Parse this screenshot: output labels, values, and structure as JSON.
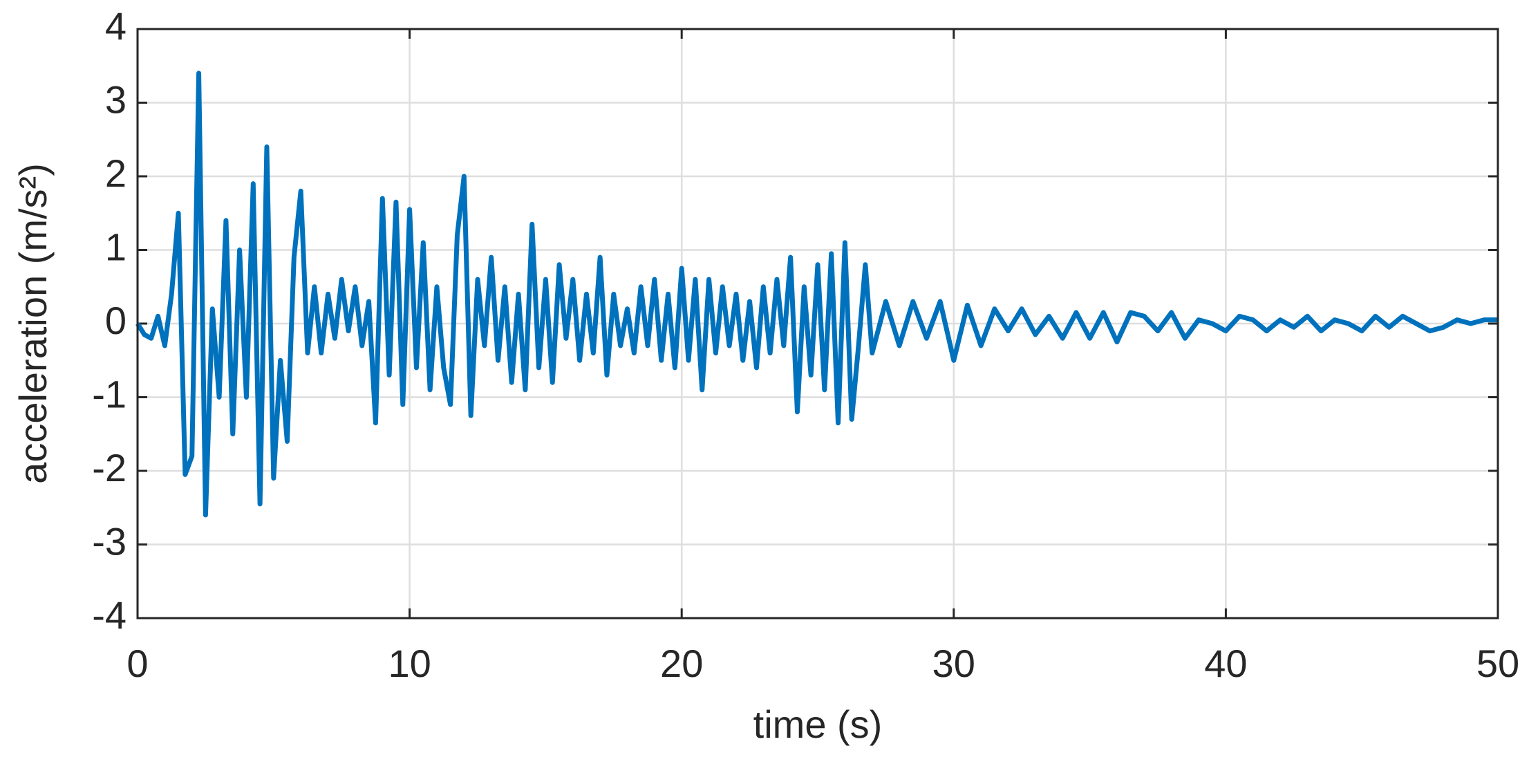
{
  "chart_data": {
    "type": "line",
    "xlabel": "time (s)",
    "ylabel": "acceleration (m/s²)",
    "color": "#0072bd",
    "grid": true,
    "xlim": [
      0,
      50
    ],
    "xticks": [
      0,
      10,
      20,
      30,
      40,
      50
    ],
    "ylim": [
      -4,
      4
    ],
    "yticks": [
      -4,
      -3,
      -2,
      -1,
      0,
      1,
      2,
      3,
      4
    ],
    "x": [
      0,
      0.25,
      0.5,
      0.75,
      1,
      1.25,
      1.5,
      1.75,
      2,
      2.25,
      2.5,
      2.75,
      3,
      3.25,
      3.5,
      3.75,
      4,
      4.25,
      4.5,
      4.75,
      5,
      5.25,
      5.5,
      5.75,
      6,
      6.25,
      6.5,
      6.75,
      7,
      7.25,
      7.5,
      7.75,
      8,
      8.25,
      8.5,
      8.75,
      9,
      9.25,
      9.5,
      9.75,
      10,
      10.25,
      10.5,
      10.75,
      11,
      11.25,
      11.5,
      11.75,
      12,
      12.25,
      12.5,
      12.75,
      13,
      13.25,
      13.5,
      13.75,
      14,
      14.25,
      14.5,
      14.75,
      15,
      15.25,
      15.5,
      15.75,
      16,
      16.25,
      16.5,
      16.75,
      17,
      17.25,
      17.5,
      17.75,
      18,
      18.25,
      18.5,
      18.75,
      19,
      19.25,
      19.5,
      19.75,
      20,
      20.25,
      20.5,
      20.75,
      21,
      21.25,
      21.5,
      21.75,
      22,
      22.25,
      22.5,
      22.75,
      23,
      23.25,
      23.5,
      23.75,
      24,
      24.25,
      24.5,
      24.75,
      25,
      25.25,
      25.5,
      25.75,
      26,
      26.25,
      26.5,
      26.75,
      27,
      27.5,
      28,
      28.5,
      29,
      29.5,
      30,
      30.5,
      31,
      31.5,
      32,
      32.5,
      33,
      33.5,
      34,
      34.5,
      35,
      35.5,
      36,
      36.5,
      37,
      37.5,
      38,
      38.5,
      39,
      39.5,
      40,
      40.5,
      41,
      41.5,
      42,
      42.5,
      43,
      43.5,
      44,
      44.5,
      45,
      45.5,
      46,
      46.5,
      47,
      47.5,
      48,
      48.5,
      49,
      49.5,
      50
    ],
    "values": [
      0,
      -0.15,
      -0.2,
      0.1,
      -0.3,
      0.4,
      1.5,
      -2.05,
      -1.8,
      3.4,
      -2.6,
      0.2,
      -1.0,
      1.4,
      -1.5,
      1.0,
      -1.0,
      1.9,
      -2.45,
      2.4,
      -2.1,
      -0.5,
      -1.6,
      0.9,
      1.8,
      -0.4,
      0.5,
      -0.4,
      0.4,
      -0.2,
      0.6,
      -0.1,
      0.5,
      -0.3,
      0.3,
      -1.35,
      1.7,
      -0.7,
      1.65,
      -1.1,
      1.55,
      -0.6,
      1.1,
      -0.9,
      0.5,
      -0.6,
      -1.1,
      1.2,
      2.0,
      -1.25,
      0.6,
      -0.3,
      0.9,
      -0.5,
      0.5,
      -0.8,
      0.4,
      -0.9,
      1.35,
      -0.6,
      0.6,
      -0.8,
      0.8,
      -0.2,
      0.6,
      -0.5,
      0.4,
      -0.4,
      0.9,
      -0.7,
      0.4,
      -0.3,
      0.2,
      -0.4,
      0.5,
      -0.3,
      0.6,
      -0.5,
      0.4,
      -0.6,
      0.75,
      -0.5,
      0.6,
      -0.9,
      0.6,
      -0.4,
      0.5,
      -0.3,
      0.4,
      -0.5,
      0.3,
      -0.6,
      0.5,
      -0.4,
      0.6,
      -0.3,
      0.9,
      -1.2,
      0.5,
      -0.7,
      0.8,
      -0.9,
      0.95,
      -1.35,
      1.1,
      -1.3,
      -0.3,
      0.8,
      -0.4,
      0.3,
      -0.3,
      0.3,
      -0.2,
      0.3,
      -0.5,
      0.25,
      -0.3,
      0.2,
      -0.1,
      0.2,
      -0.15,
      0.1,
      -0.2,
      0.15,
      -0.2,
      0.15,
      -0.25,
      0.15,
      0.1,
      -0.1,
      0.15,
      -0.2,
      0.05,
      0.0,
      -0.1,
      0.1,
      0.05,
      -0.1,
      0.05,
      -0.05,
      0.1,
      -0.1,
      0.05,
      0.0,
      -0.1,
      0.1,
      -0.05,
      0.1,
      0.0,
      -0.1,
      -0.05,
      0.05,
      0.0,
      0.05,
      0.05
    ]
  }
}
